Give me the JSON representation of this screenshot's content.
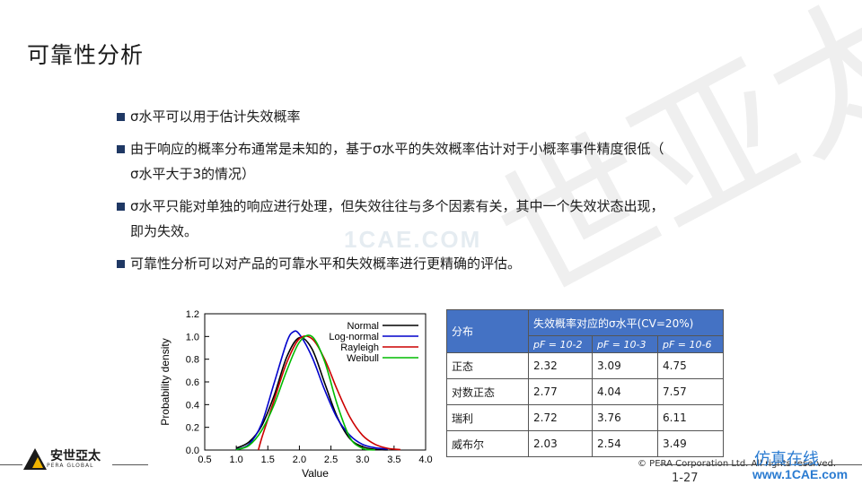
{
  "page": {
    "title": "可靠性分析"
  },
  "bullets": [
    {
      "lines": [
        "σ水平可以用于估计失效概率"
      ]
    },
    {
      "lines": [
        "由于响应的概率分布通常是未知的，基于σ水平的失效概率估计对于小概率事件精度很低（",
        "σ水平大于3的情况）"
      ]
    },
    {
      "lines": [
        "σ水平只能对单独的响应进行处理，但失效往往与多个因素有关，其中一个失效状态出现，",
        "即为失效。"
      ]
    },
    {
      "lines": [
        "可靠性分析可以对产品的可靠水平和失效概率进行更精确的评估。"
      ]
    }
  ],
  "chart_data": {
    "type": "line",
    "xlabel": "Value",
    "ylabel": "Probability density",
    "xlim": [
      0.5,
      4.0
    ],
    "ylim": [
      0.0,
      1.2
    ],
    "xticks": [
      "0.5",
      "1.0",
      "1.5",
      "2.0",
      "2.5",
      "3.0",
      "3.5",
      "4.0"
    ],
    "yticks": [
      "0.0",
      "0.2",
      "0.4",
      "0.6",
      "0.8",
      "1.0",
      "1.2"
    ],
    "legend_position": "top-right",
    "series": [
      {
        "name": "Normal",
        "color": "#000000",
        "x": [
          1.0,
          1.2,
          1.4,
          1.6,
          1.8,
          2.0,
          2.2,
          2.4,
          2.6,
          2.8,
          3.0,
          3.2,
          3.4
        ],
        "y": [
          0.016,
          0.07,
          0.21,
          0.48,
          0.82,
          0.99,
          0.89,
          0.59,
          0.29,
          0.1,
          0.03,
          0.006,
          0.001
        ]
      },
      {
        "name": "Log-normal",
        "color": "#0000cc",
        "x": [
          1.0,
          1.2,
          1.4,
          1.6,
          1.8,
          1.9,
          2.0,
          2.2,
          2.4,
          2.6,
          2.8,
          3.0,
          3.2,
          3.4
        ],
        "y": [
          0.004,
          0.05,
          0.23,
          0.59,
          0.95,
          1.04,
          1.02,
          0.82,
          0.53,
          0.28,
          0.13,
          0.05,
          0.02,
          0.008
        ]
      },
      {
        "name": "Rayleigh",
        "color": "#cc0000",
        "x": [
          1.35,
          1.4,
          1.5,
          1.6,
          1.8,
          2.0,
          2.2,
          2.4,
          2.6,
          2.8,
          3.0,
          3.2,
          3.4,
          3.6
        ],
        "y": [
          0.0,
          0.1,
          0.27,
          0.44,
          0.77,
          0.98,
          0.98,
          0.8,
          0.53,
          0.29,
          0.13,
          0.05,
          0.015,
          0.004
        ]
      },
      {
        "name": "Weibull",
        "color": "#00bb00",
        "x": [
          1.0,
          1.2,
          1.4,
          1.6,
          1.8,
          2.0,
          2.2,
          2.4,
          2.6,
          2.8,
          3.0,
          3.2
        ],
        "y": [
          0.003,
          0.04,
          0.17,
          0.4,
          0.7,
          0.95,
          1.0,
          0.78,
          0.4,
          0.11,
          0.015,
          0.001
        ]
      }
    ]
  },
  "table": {
    "col1_header": "分布",
    "group_header": "失效概率对应的σ水平(CV=20%)",
    "sub_headers": [
      "pF = 10-2",
      "pF = 10-3",
      "pF = 10-6"
    ],
    "rows": [
      {
        "dist": "正态",
        "v": [
          "2.32",
          "3.09",
          "4.75"
        ]
      },
      {
        "dist": "对数正态",
        "v": [
          "2.77",
          "4.04",
          "7.57"
        ]
      },
      {
        "dist": "瑞利",
        "v": [
          "2.72",
          "3.76",
          "6.11"
        ]
      },
      {
        "dist": "威布尔",
        "v": [
          "2.03",
          "2.54",
          "3.49"
        ]
      }
    ]
  },
  "watermarks": {
    "mid": "1CAE.COM",
    "big": "世亚太",
    "corner_cn": "仿真在线",
    "corner_url": "www.1CAE.com"
  },
  "footer": {
    "logo_name": "安世亞太",
    "logo_sub": "PERA GLOBAL",
    "copyright": "© PERA Corporation Ltd. All rights reserved.",
    "page_number": "1-27"
  }
}
